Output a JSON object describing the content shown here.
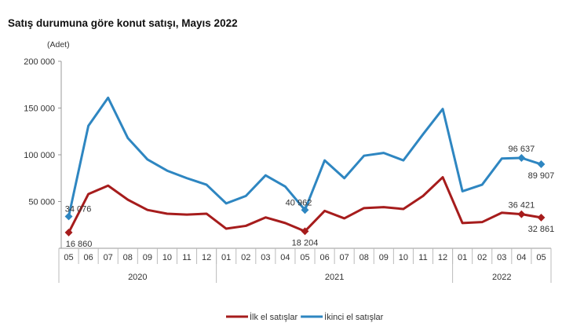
{
  "chart_data": {
    "type": "line",
    "title": "Satış durumuna göre konut satışı, Mayıs 2022",
    "ylabel": "(Adet)",
    "ylim": [
      0,
      200000
    ],
    "yticks": [
      50000,
      100000,
      150000,
      200000
    ],
    "ytick_labels": [
      "50 000",
      "100 000",
      "150 000",
      "200 000"
    ],
    "grid": false,
    "legend_placement": "bottom",
    "categories": [
      "05",
      "06",
      "07",
      "08",
      "09",
      "10",
      "11",
      "12",
      "01",
      "02",
      "03",
      "04",
      "05",
      "06",
      "07",
      "08",
      "09",
      "10",
      "11",
      "12",
      "01",
      "02",
      "03",
      "04",
      "05"
    ],
    "year_groups": [
      {
        "label": "2020",
        "count": 8
      },
      {
        "label": "2021",
        "count": 12
      },
      {
        "label": "2022",
        "count": 5
      }
    ],
    "series": [
      {
        "name": "İlk el satışlar",
        "color": "#a61c1c",
        "values": [
          16860,
          58000,
          67000,
          52000,
          41000,
          37000,
          36000,
          37000,
          21000,
          24000,
          33000,
          27000,
          18204,
          40000,
          32000,
          43000,
          44000,
          42000,
          56000,
          76000,
          27000,
          28000,
          38000,
          36421,
          32861
        ],
        "labels": {
          "0": "16 860",
          "12": "18 204",
          "23": "36 421",
          "24": "32 861"
        },
        "markers": [
          0,
          12,
          23,
          24
        ]
      },
      {
        "name": "İkinci el satışlar",
        "color": "#2e86c1",
        "values": [
          34076,
          131000,
          161000,
          118000,
          95000,
          83000,
          75000,
          68000,
          48000,
          56000,
          78000,
          66000,
          40962,
          94000,
          75000,
          99000,
          102000,
          94000,
          122000,
          149000,
          61000,
          68000,
          96000,
          96637,
          89907
        ],
        "labels": {
          "0": "34 076",
          "12": "40 962",
          "23": "96 637",
          "24": "89 907"
        },
        "markers": [
          0,
          12,
          23,
          24
        ]
      }
    ]
  }
}
